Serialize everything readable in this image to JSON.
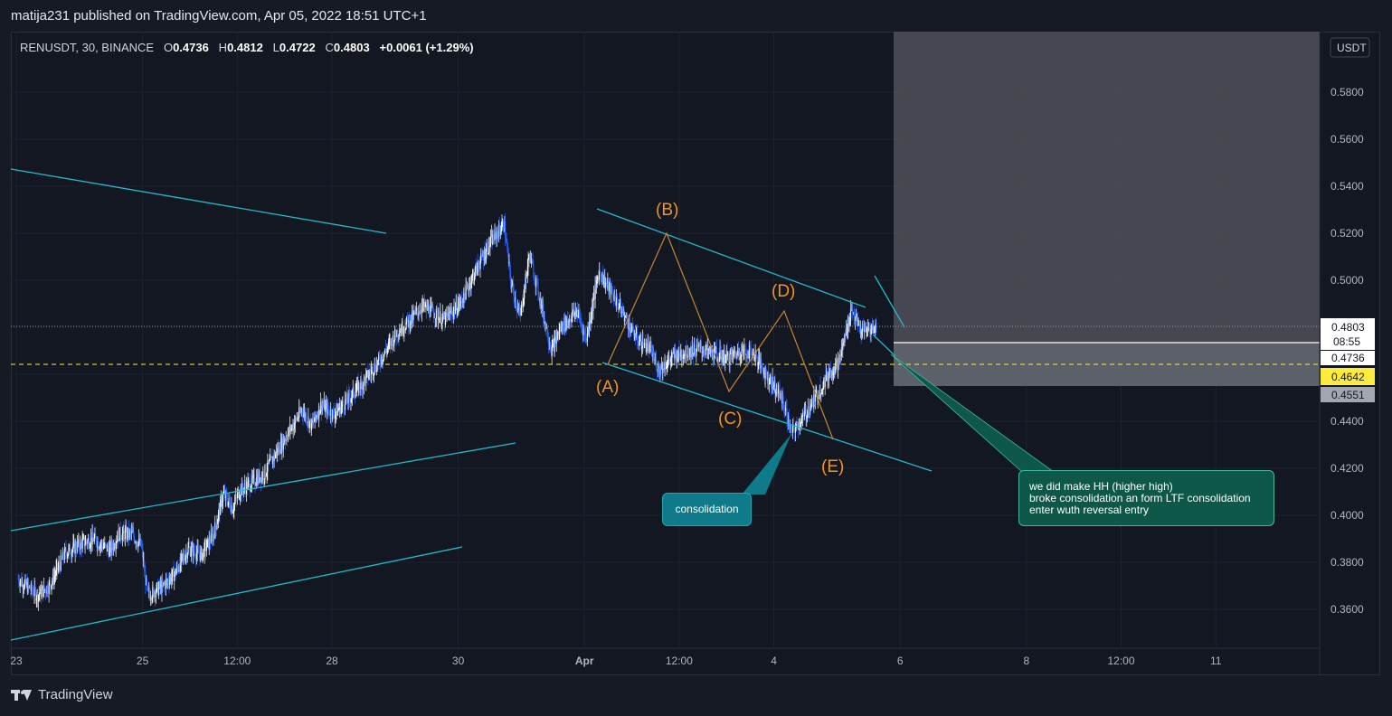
{
  "header": {
    "published": "matija231 published on TradingView.com, Apr 05, 2022 18:51 UTC+1"
  },
  "legend": {
    "symbol": "RENUSDT, 30, BINANCE",
    "o_label": "O",
    "o": "0.4736",
    "h_label": "H",
    "h": "0.4812",
    "l_label": "L",
    "l": "0.4722",
    "c_label": "C",
    "c": "0.4803",
    "change": "+0.0061 (+1.29%)"
  },
  "chart_data": {
    "type": "candlestick",
    "symbol": "RENUSDT",
    "interval": "30",
    "exchange": "BINANCE",
    "currency": "USDT",
    "ylim": [
      0.345,
      0.605
    ],
    "y_ticks": [
      "0.5800",
      "0.5600",
      "0.5400",
      "0.5200",
      "0.5000",
      "0.4800",
      "0.4600",
      "0.4400",
      "0.4200",
      "0.4000",
      "0.3800",
      "0.3600"
    ],
    "x_ticks": [
      "23",
      "25",
      "12:00",
      "28",
      "30",
      "Apr",
      "12:00",
      "4",
      "6",
      "8",
      "12:00",
      "11"
    ],
    "price_labels": {
      "last": "0.4803",
      "countdown": "08:55",
      "open": "0.4736",
      "alert": "0.4642",
      "stop": "0.4551"
    },
    "path_points": [
      [
        0,
        0.373
      ],
      [
        0.6,
        0.366
      ],
      [
        1.0,
        0.37
      ],
      [
        1.5,
        0.384
      ],
      [
        2.0,
        0.388
      ],
      [
        2.4,
        0.39
      ],
      [
        2.9,
        0.385
      ],
      [
        3.2,
        0.392
      ],
      [
        3.6,
        0.392
      ],
      [
        3.9,
        0.387
      ],
      [
        4.1,
        0.366
      ],
      [
        4.6,
        0.37
      ],
      [
        5.0,
        0.376
      ],
      [
        5.4,
        0.386
      ],
      [
        5.8,
        0.383
      ],
      [
        6.2,
        0.392
      ],
      [
        6.5,
        0.409
      ],
      [
        6.8,
        0.403
      ],
      [
        7.0,
        0.41
      ],
      [
        7.3,
        0.413
      ],
      [
        7.8,
        0.418
      ],
      [
        8.2,
        0.427
      ],
      [
        8.6,
        0.436
      ],
      [
        9.0,
        0.445
      ],
      [
        9.3,
        0.438
      ],
      [
        9.6,
        0.447
      ],
      [
        10.0,
        0.443
      ],
      [
        10.5,
        0.45
      ],
      [
        11.0,
        0.458
      ],
      [
        11.4,
        0.465
      ],
      [
        11.7,
        0.471
      ],
      [
        12.0,
        0.478
      ],
      [
        12.5,
        0.484
      ],
      [
        12.8,
        0.489
      ],
      [
        13.2,
        0.486
      ],
      [
        13.5,
        0.483
      ],
      [
        14.0,
        0.49
      ],
      [
        14.6,
        0.507
      ],
      [
        15.0,
        0.517
      ],
      [
        15.4,
        0.524
      ],
      [
        15.6,
        0.5
      ],
      [
        15.9,
        0.484
      ],
      [
        16.2,
        0.511
      ],
      [
        16.5,
        0.494
      ],
      [
        16.9,
        0.47
      ],
      [
        17.2,
        0.48
      ],
      [
        17.7,
        0.487
      ],
      [
        18.0,
        0.475
      ],
      [
        18.4,
        0.504
      ],
      [
        18.8,
        0.495
      ],
      [
        19.2,
        0.485
      ],
      [
        19.6,
        0.475
      ],
      [
        20.0,
        0.471
      ],
      [
        20.3,
        0.462
      ],
      [
        20.8,
        0.468
      ],
      [
        21.3,
        0.47
      ],
      [
        21.6,
        0.471
      ],
      [
        22.0,
        0.469
      ],
      [
        22.5,
        0.467
      ],
      [
        22.9,
        0.47
      ],
      [
        23.3,
        0.469
      ],
      [
        23.7,
        0.46
      ],
      [
        24.2,
        0.45
      ],
      [
        24.5,
        0.435
      ],
      [
        24.9,
        0.442
      ],
      [
        25.3,
        0.451
      ],
      [
        25.7,
        0.461
      ],
      [
        26.0,
        0.465
      ],
      [
        26.4,
        0.488
      ],
      [
        26.7,
        0.478
      ],
      [
        27.0,
        0.479
      ],
      [
        27.2,
        0.4803
      ]
    ],
    "annotations": {
      "labels": [
        "(A)",
        "(B)",
        "(C)",
        "(D)",
        "(E)"
      ],
      "consolidation": "consolidation",
      "note_lines": [
        "we did make HH (higher high)",
        "broke consolidation an form LTF consolidation",
        "enter wuth reversal entry"
      ]
    },
    "colors": {
      "background": "#131722",
      "candle": "#ffffff",
      "candle_down": "#2962ff",
      "trendline": "#22b8cf",
      "wave": "#c7862d",
      "wave_label": "#f7931a",
      "alert": "#ffeb3b"
    },
    "grid": true
  }
}
